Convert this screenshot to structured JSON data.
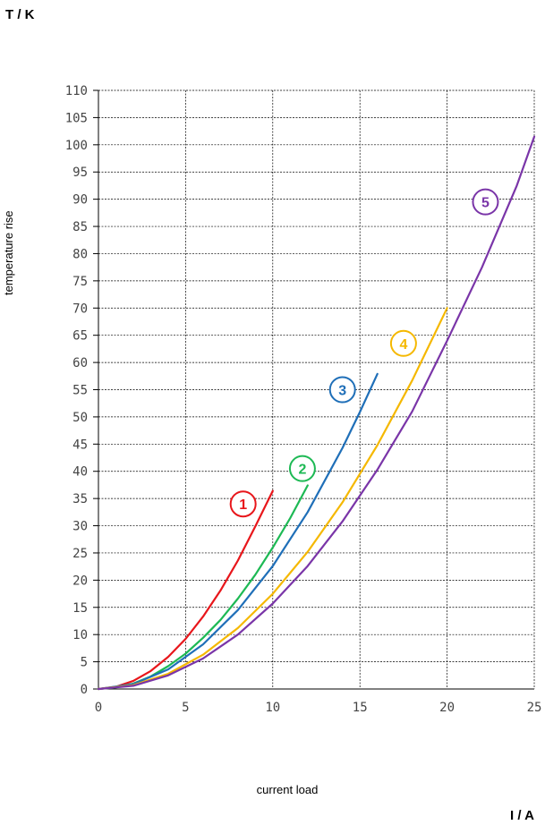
{
  "chart_data": {
    "type": "line",
    "title": "",
    "ylabel": "temperature rise",
    "xlabel": "current load",
    "ylabel_unit": "T / K",
    "xlabel_unit": "I / A",
    "xlim": [
      0,
      25
    ],
    "ylim": [
      0,
      110
    ],
    "xticks": [
      0,
      5,
      10,
      15,
      20,
      25
    ],
    "yticks": [
      0,
      5,
      10,
      15,
      20,
      25,
      30,
      35,
      40,
      45,
      50,
      55,
      60,
      65,
      70,
      75,
      80,
      85,
      90,
      95,
      100,
      105,
      110
    ],
    "grid": true,
    "series": [
      {
        "name": "1",
        "color": "#e8161b",
        "marker_at": [
          8.3,
          34
        ],
        "x": [
          0,
          1,
          2,
          3,
          4,
          5,
          6,
          7,
          8,
          9,
          10
        ],
        "y": [
          0,
          0.4,
          1.5,
          3.3,
          5.9,
          9.2,
          13.3,
          18.1,
          23.6,
          29.9,
          36.4
        ]
      },
      {
        "name": "2",
        "color": "#1db954",
        "marker_at": [
          11.7,
          40.5
        ],
        "x": [
          0,
          1,
          2,
          3,
          4,
          5,
          6,
          7,
          8,
          9,
          10,
          11,
          12
        ],
        "y": [
          0,
          0.3,
          1.0,
          2.3,
          4.2,
          6.5,
          9.4,
          12.7,
          16.6,
          21.0,
          26.0,
          31.4,
          37.4
        ]
      },
      {
        "name": "3",
        "color": "#1f6fb8",
        "marker_at": [
          14,
          55
        ],
        "x": [
          0,
          2,
          4,
          6,
          8,
          10,
          12,
          14,
          15,
          16
        ],
        "y": [
          0,
          0.9,
          3.6,
          8.2,
          14.5,
          22.6,
          32.5,
          44.3,
          50.9,
          57.9
        ]
      },
      {
        "name": "4",
        "color": "#f5b800",
        "marker_at": [
          17.5,
          63.5
        ],
        "x": [
          0,
          2,
          4,
          6,
          8,
          10,
          12,
          14,
          16,
          18,
          20
        ],
        "y": [
          0,
          0.7,
          2.8,
          6.3,
          11.2,
          17.5,
          25.2,
          34.3,
          44.8,
          56.7,
          70.0
        ]
      },
      {
        "name": "5",
        "color": "#7a35a8",
        "marker_at": [
          22.2,
          89.5
        ],
        "x": [
          0,
          2,
          4,
          6,
          8,
          10,
          12,
          14,
          16,
          18,
          20,
          22,
          24,
          25
        ],
        "y": [
          0,
          0.6,
          2.5,
          5.6,
          10.0,
          15.7,
          22.6,
          30.8,
          40.3,
          51.0,
          64.0,
          77.5,
          92.5,
          101.5
        ]
      }
    ]
  }
}
